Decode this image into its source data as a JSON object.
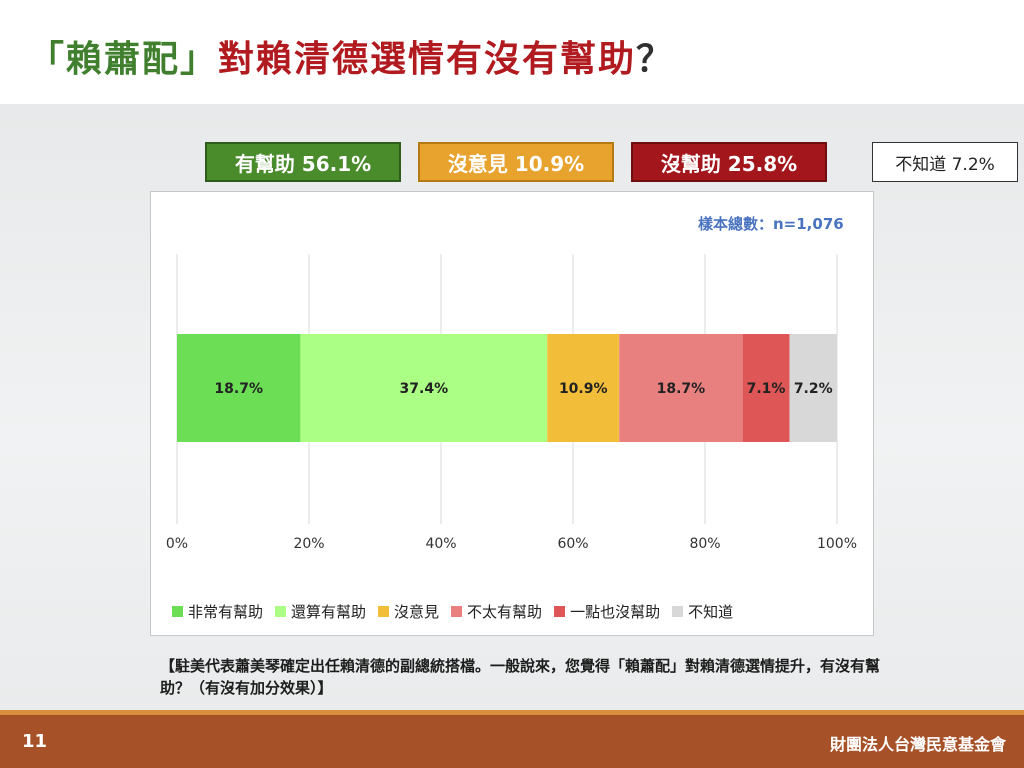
{
  "title": {
    "part1": "「賴蕭配」",
    "part2": "對賴清德選情有沒有幫助",
    "part3": "？"
  },
  "summary": [
    {
      "label": "有幫助 56.1%",
      "color": "#4a8b2c"
    },
    {
      "label": "沒意見 10.9%",
      "color": "#e8a22e"
    },
    {
      "label": "沒幫助 25.8%",
      "color": "#a3161b"
    },
    {
      "label": "不知道 7.2%",
      "color": "#ffffff"
    }
  ],
  "sample_note": "樣本總數：n=1,076",
  "chart_data": {
    "type": "bar",
    "orientation": "horizontal",
    "stacked": true,
    "xlim": [
      0,
      100
    ],
    "x_ticks": [
      "0%",
      "20%",
      "40%",
      "60%",
      "80%",
      "100%"
    ],
    "grid": true,
    "legend_position": "bottom",
    "series": [
      {
        "name": "非常有幫助",
        "value": 18.7,
        "label": "18.7%",
        "color": "#6cde56"
      },
      {
        "name": "還算有幫助",
        "value": 37.4,
        "label": "37.4%",
        "color": "#abff84"
      },
      {
        "name": "沒意見",
        "value": 10.9,
        "label": "10.9%",
        "color": "#f2be3a"
      },
      {
        "name": "不太有幫助",
        "value": 18.7,
        "label": "18.7%",
        "color": "#e88080"
      },
      {
        "name": "一點也沒幫助",
        "value": 7.1,
        "label": "7.1%",
        "color": "#df5656"
      },
      {
        "name": "不知道",
        "value": 7.2,
        "label": "7.2%",
        "color": "#d8d8d8"
      }
    ]
  },
  "question": "【駐美代表蕭美琴確定出任賴清德的副總統搭檔。一般說來，您覺得「賴蕭配」對賴清德選情提升，有沒有幫助？（有沒有加分效果）】",
  "footer": {
    "page": "11",
    "org": "財團法人台灣民意基金會"
  }
}
